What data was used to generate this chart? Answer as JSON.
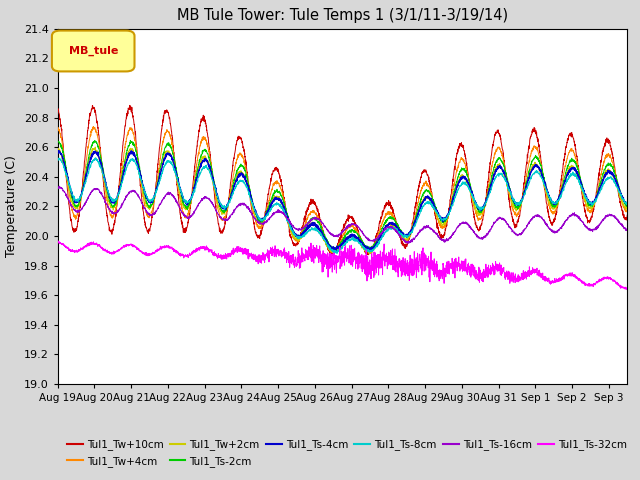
{
  "title": "MB Tule Tower: Tule Temps 1 (3/1/11-3/19/14)",
  "ylabel": "Temperature (C)",
  "ylim": [
    19.0,
    21.4
  ],
  "yticks": [
    19.0,
    19.2,
    19.4,
    19.6,
    19.8,
    20.0,
    20.2,
    20.4,
    20.6,
    20.8,
    21.0,
    21.2,
    21.4
  ],
  "xlim_days": [
    0,
    15.5
  ],
  "x_tick_labels": [
    "Aug 19",
    "Aug 20",
    "Aug 21",
    "Aug 22",
    "Aug 23",
    "Aug 24",
    "Aug 25",
    "Aug 26",
    "Aug 27",
    "Aug 28",
    "Aug 29",
    "Aug 30",
    "Aug 31",
    "Sep 1",
    "Sep 2",
    "Sep 3"
  ],
  "background_color": "#d8d8d8",
  "plot_bg_color": "#ffffff",
  "series_colors": {
    "Tul1_Tw+10cm": "#cc0000",
    "Tul1_Tw+4cm": "#ff8800",
    "Tul1_Tw+2cm": "#cccc00",
    "Tul1_Ts-2cm": "#00cc00",
    "Tul1_Ts-4cm": "#0000cc",
    "Tul1_Ts-8cm": "#00cccc",
    "Tul1_Ts-16cm": "#9900cc",
    "Tul1_Ts-32cm": "#ff00ff"
  },
  "legend_box_color": "#ffff99",
  "legend_box_edge": "#cc9900",
  "legend_text": "MB_tule",
  "legend_text_color": "#cc0000"
}
